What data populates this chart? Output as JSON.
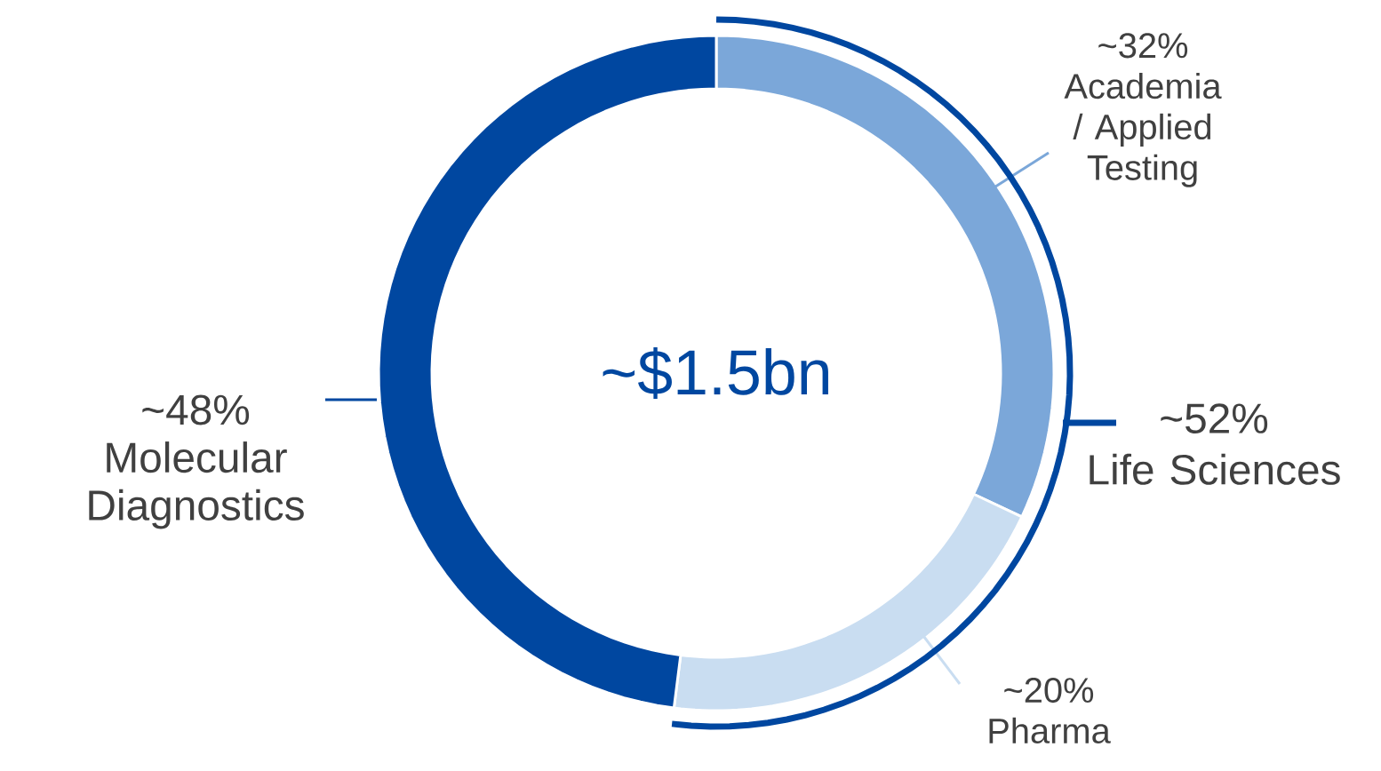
{
  "chart_data": {
    "type": "donut",
    "categories": [
      "Academia / Applied Testing",
      "Pharma",
      "Molecular Diagnostics"
    ],
    "values": [
      32,
      20,
      48
    ],
    "value_labels": [
      "~32%",
      "~20%",
      "~48%"
    ],
    "colors": [
      "#7ba7d9",
      "#c9ddf1",
      "#0047a0"
    ],
    "annotations": [
      "~$1.5bn",
      "~52%",
      "Life Sciences"
    ]
  }
}
